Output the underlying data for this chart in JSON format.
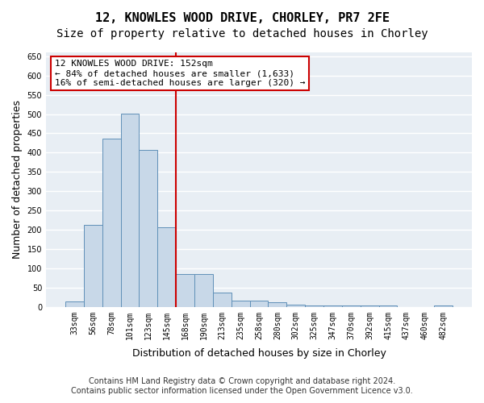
{
  "title": "12, KNOWLES WOOD DRIVE, CHORLEY, PR7 2FE",
  "subtitle": "Size of property relative to detached houses in Chorley",
  "xlabel": "Distribution of detached houses by size in Chorley",
  "ylabel": "Number of detached properties",
  "categories": [
    "33sqm",
    "56sqm",
    "78sqm",
    "101sqm",
    "123sqm",
    "145sqm",
    "168sqm",
    "190sqm",
    "213sqm",
    "235sqm",
    "258sqm",
    "280sqm",
    "302sqm",
    "325sqm",
    "347sqm",
    "370sqm",
    "392sqm",
    "415sqm",
    "437sqm",
    "460sqm",
    "482sqm"
  ],
  "values": [
    15,
    213,
    437,
    502,
    407,
    207,
    85,
    85,
    38,
    17,
    17,
    12,
    5,
    3,
    3,
    3,
    3,
    3,
    0,
    0,
    3
  ],
  "bar_color": "#c8d8e8",
  "bar_edge_color": "#6090b8",
  "vline_pos": 5.5,
  "vline_color": "#cc0000",
  "annotation_line1": "12 KNOWLES WOOD DRIVE: 152sqm",
  "annotation_line2": "← 84% of detached houses are smaller (1,633)",
  "annotation_line3": "16% of semi-detached houses are larger (320) →",
  "annotation_box_color": "#cc0000",
  "ylim": [
    0,
    660
  ],
  "yticks": [
    0,
    50,
    100,
    150,
    200,
    250,
    300,
    350,
    400,
    450,
    500,
    550,
    600,
    650
  ],
  "background_color": "#e8eef4",
  "grid_color": "#ffffff",
  "footer1": "Contains HM Land Registry data © Crown copyright and database right 2024.",
  "footer2": "Contains public sector information licensed under the Open Government Licence v3.0.",
  "title_fontsize": 11,
  "subtitle_fontsize": 10,
  "axis_label_fontsize": 9,
  "tick_fontsize": 7,
  "annotation_fontsize": 8,
  "footer_fontsize": 7
}
